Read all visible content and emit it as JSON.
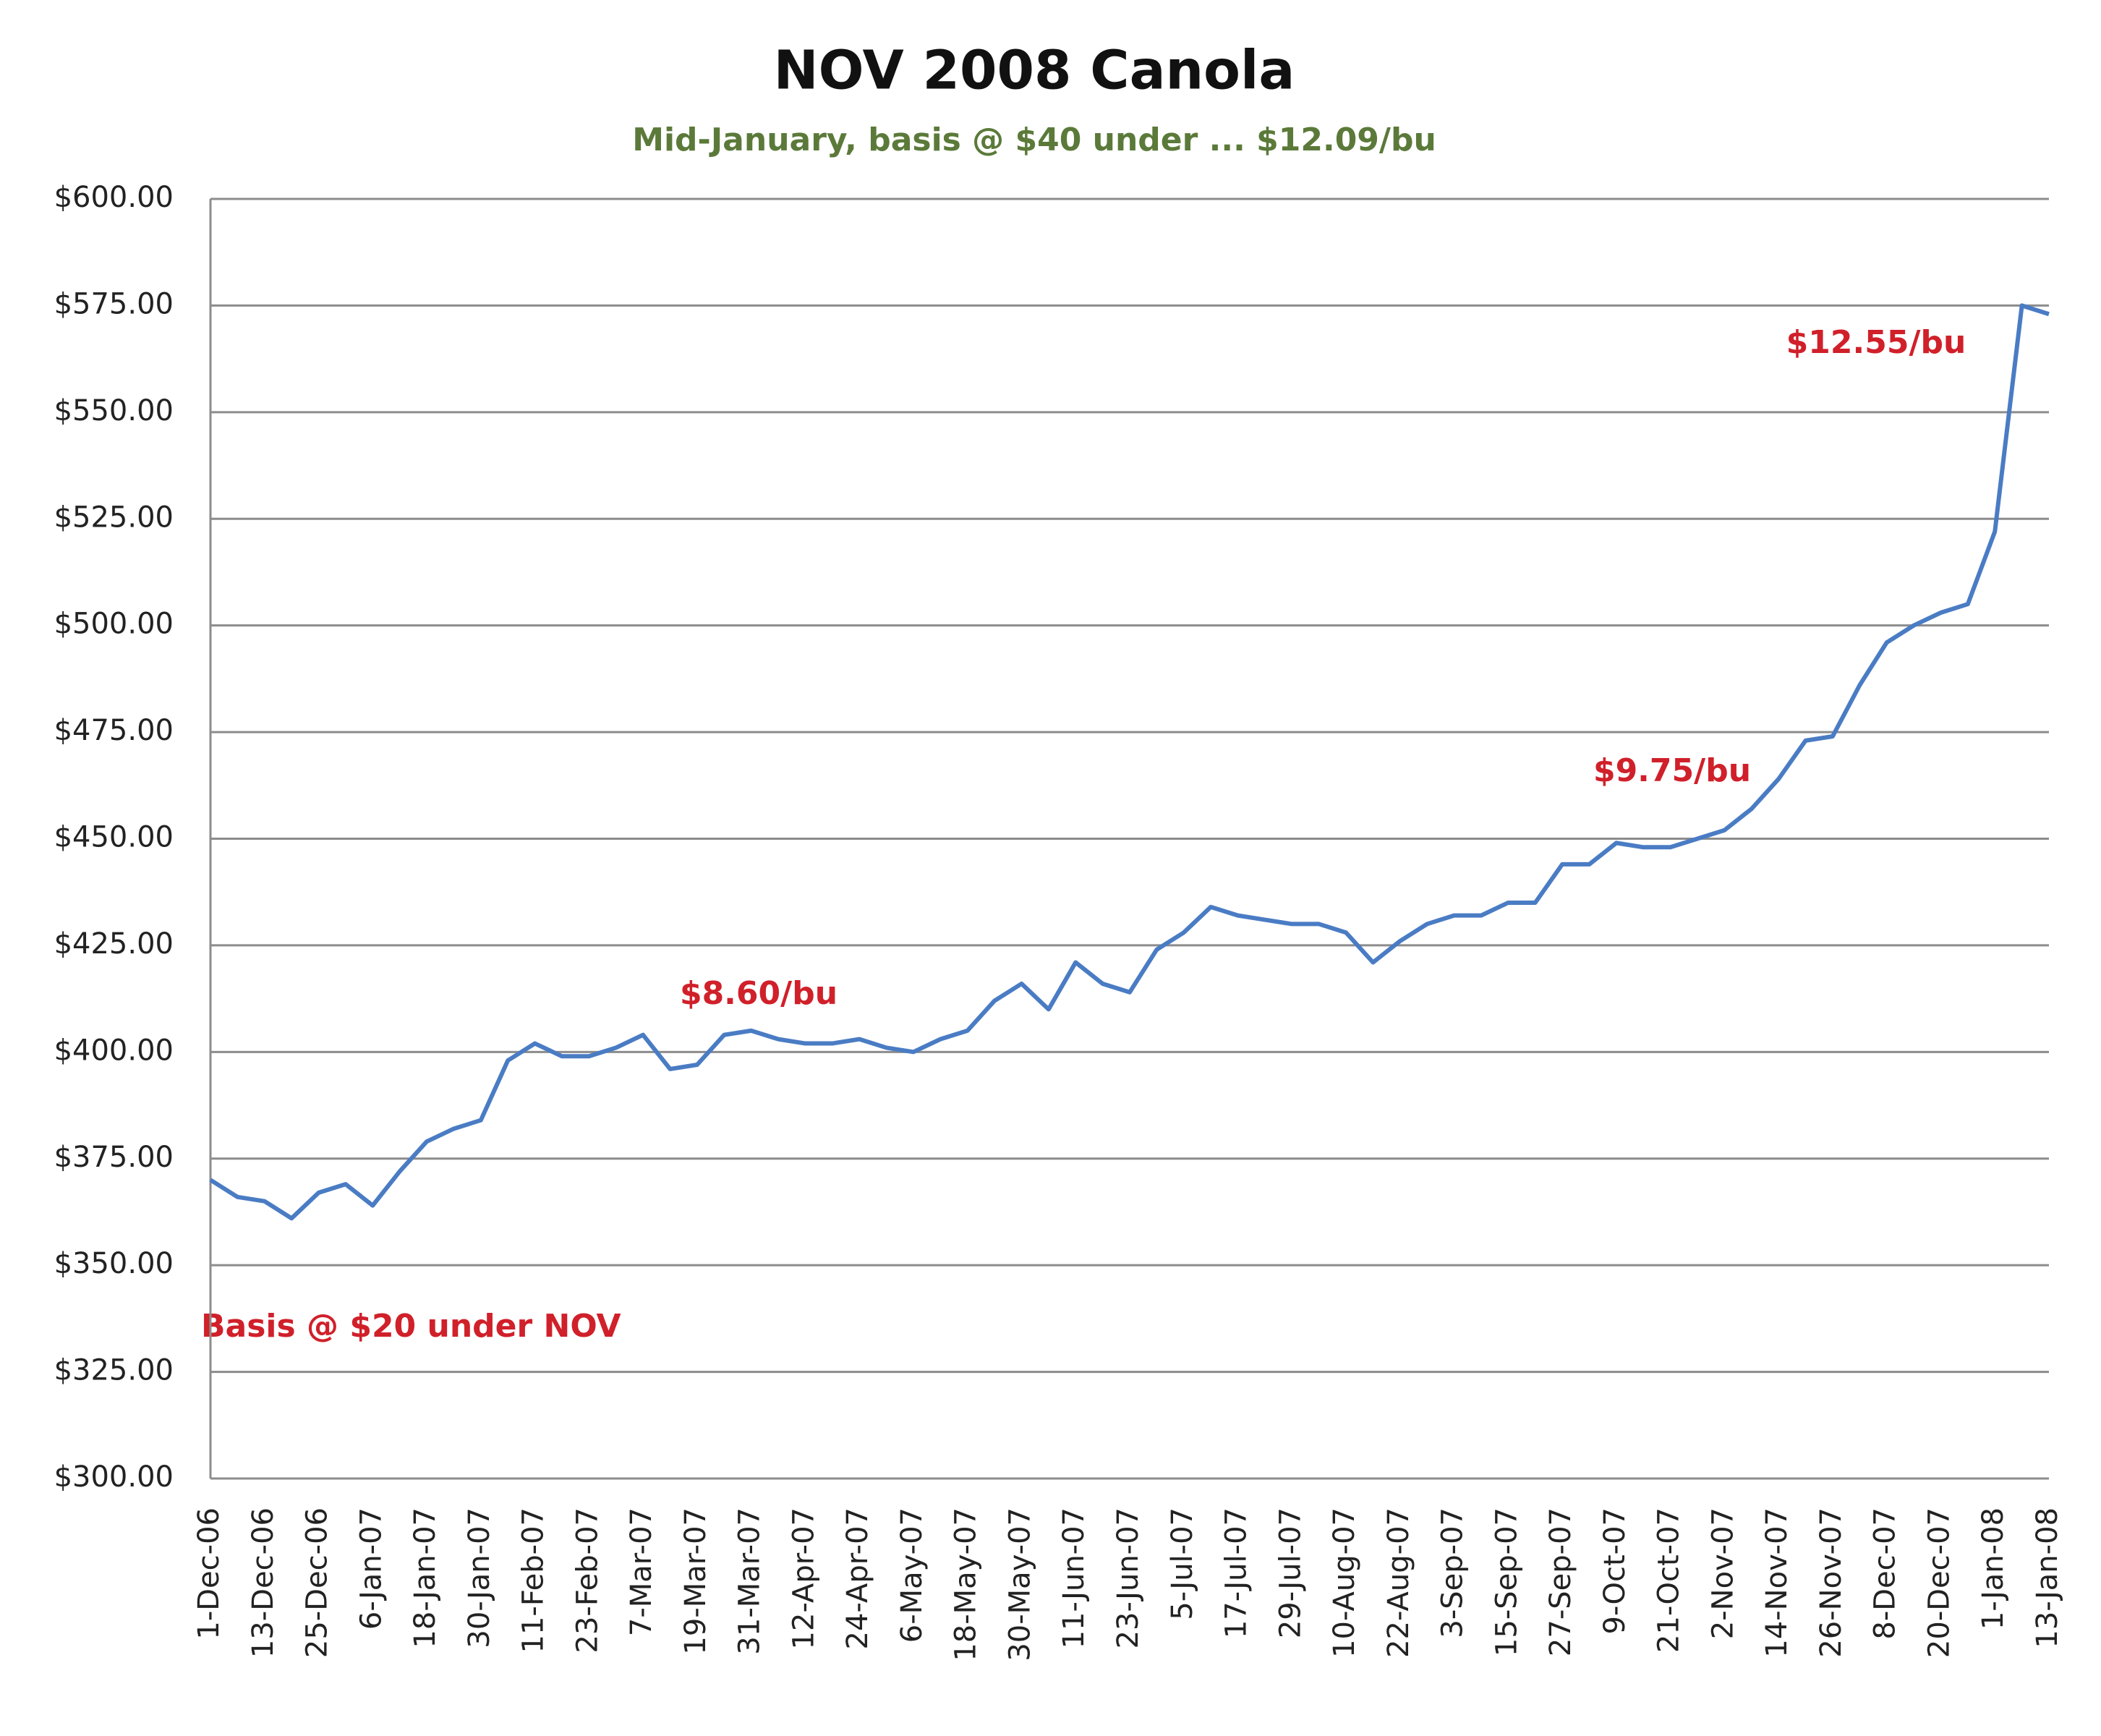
{
  "chart_data": {
    "type": "line",
    "title": "NOV 2008 Canola",
    "subtitle": "Mid-January, basis @ $40 under ... $12.09/bu",
    "annotations": [
      "Basis @ $20 under NOV",
      "$8.60/bu",
      "$9.75/bu",
      "$12.55/bu"
    ],
    "categories": [
      "1-Dec-06",
      null,
      "13-Dec-06",
      null,
      "25-Dec-06",
      null,
      "6-Jan-07",
      null,
      "18-Jan-07",
      null,
      "30-Jan-07",
      null,
      "11-Feb-07",
      null,
      "23-Feb-07",
      null,
      "7-Mar-07",
      null,
      "19-Mar-07",
      null,
      "31-Mar-07",
      null,
      "12-Apr-07",
      null,
      "24-Apr-07",
      null,
      "6-May-07",
      null,
      "18-May-07",
      null,
      "30-May-07",
      null,
      "11-Jun-07",
      null,
      "23-Jun-07",
      null,
      "5-Jul-07",
      null,
      "17-Jul-07",
      null,
      "29-Jul-07",
      null,
      "10-Aug-07",
      null,
      "22-Aug-07",
      null,
      "3-Sep-07",
      null,
      "15-Sep-07",
      null,
      "27-Sep-07",
      null,
      "9-Oct-07",
      null,
      "21-Oct-07",
      null,
      "2-Nov-07",
      null,
      "14-Nov-07",
      null,
      "26-Nov-07",
      null,
      "8-Dec-07",
      null,
      "20-Dec-07",
      null,
      "1-Jan-08",
      null,
      "13-Jan-08"
    ],
    "series": [
      {
        "name": "NOV 2008 Canola",
        "color": "#4a7cc4",
        "values": [
          370,
          366,
          365,
          361,
          367,
          369,
          364,
          372,
          379,
          382,
          384,
          398,
          402,
          399,
          399,
          401,
          404,
          396,
          397,
          404,
          405,
          403,
          402,
          402,
          403,
          401,
          400,
          403,
          405,
          412,
          416,
          410,
          421,
          416,
          414,
          424,
          428,
          434,
          432,
          431,
          430,
          430,
          428,
          421,
          426,
          430,
          432,
          432,
          435,
          435,
          444,
          444,
          449,
          448,
          448,
          450,
          452,
          457,
          464,
          473,
          474,
          486,
          496,
          500,
          503,
          505,
          522,
          575,
          573
        ]
      }
    ],
    "ylim": [
      300,
      600
    ],
    "yticks": [
      {
        "value": 300,
        "label": "$300.00"
      },
      {
        "value": 325,
        "label": "$325.00"
      },
      {
        "value": 350,
        "label": "$350.00"
      },
      {
        "value": 375,
        "label": "$375.00"
      },
      {
        "value": 400,
        "label": "$400.00"
      },
      {
        "value": 425,
        "label": "$425.00"
      },
      {
        "value": 450,
        "label": "$450.00"
      },
      {
        "value": 475,
        "label": "$475.00"
      },
      {
        "value": 500,
        "label": "$500.00"
      },
      {
        "value": 525,
        "label": "$525.00"
      },
      {
        "value": 550,
        "label": "$550.00"
      },
      {
        "value": 575,
        "label": "$575.00"
      },
      {
        "value": 600,
        "label": "$600.00"
      }
    ],
    "grid": true
  }
}
